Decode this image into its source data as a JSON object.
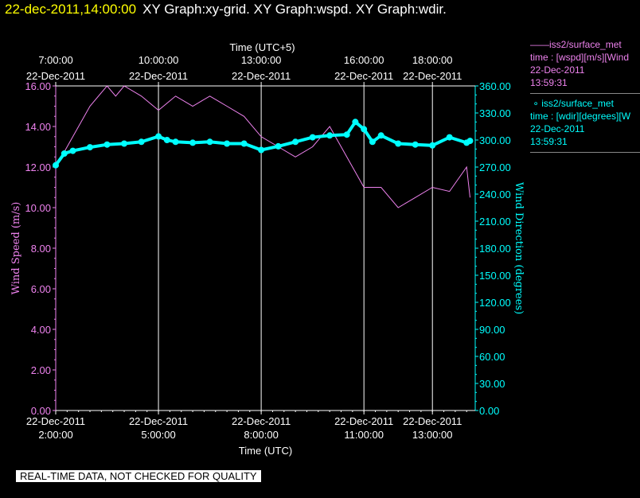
{
  "header": {
    "timestamp": "22-dec-2011,14:00:00",
    "titles": "XY Graph:xy-grid.  XY Graph:wspd.  XY Graph:wdir."
  },
  "legend": [
    {
      "symbol": "——",
      "line1": "iss2/surface_met",
      "line2": "time : [wspd][m/s][Wind",
      "line3": "22-Dec-2011",
      "line4": "13:59:31",
      "color": "#ee82ee"
    },
    {
      "symbol": "∘",
      "line1": "iss2/surface_met",
      "line2": "time : [wdir][degrees][W",
      "line3": "22-Dec-2011",
      "line4": "13:59:31",
      "color": "#00ffff"
    }
  ],
  "note": "REAL-TIME DATA, NOT CHECKED FOR QUALITY",
  "chart_data": {
    "type": "line",
    "xlabel_bottom": "Time (UTC)",
    "xlabel_top": "Time (UTC+5)",
    "ylabel_left": "Wind  Speed  (m/s)",
    "ylabel_right": "Wind  Direction  (degrees)",
    "x_range_utc_hours": [
      2.0,
      14.25
    ],
    "ylim_left": [
      0,
      16
    ],
    "ylim_right": [
      0,
      360
    ],
    "grid": "vertical at labeled time ticks",
    "bottom_ticks": [
      {
        "t": 2,
        "date": "22-Dec-2011",
        "time": "2:00:00"
      },
      {
        "t": 5,
        "date": "22-Dec-2011",
        "time": "5:00:00"
      },
      {
        "t": 8,
        "date": "22-Dec-2011",
        "time": "8:00:00"
      },
      {
        "t": 11,
        "date": "22-Dec-2011",
        "time": "11:00:00"
      },
      {
        "t": 13,
        "date": "22-Dec-2011",
        "time": "13:00:00"
      }
    ],
    "top_ticks": [
      {
        "t": 2,
        "time": "7:00:00",
        "date": "22-Dec-2011"
      },
      {
        "t": 5,
        "time": "10:00:00",
        "date": "22-Dec-2011"
      },
      {
        "t": 8,
        "time": "13:00:00",
        "date": "22-Dec-2011"
      },
      {
        "t": 11,
        "time": "16:00:00",
        "date": "22-Dec-2011"
      },
      {
        "t": 13,
        "time": "18:00:00",
        "date": "22-Dec-2011"
      }
    ],
    "left_ticks": [
      "0.00",
      "2.00",
      "4.00",
      "6.00",
      "8.00",
      "10.00",
      "12.00",
      "14.00",
      "16.00"
    ],
    "right_ticks": [
      "0.00",
      "30.00",
      "60.00",
      "90.00",
      "120.00",
      "150.00",
      "180.00",
      "210.00",
      "240.00",
      "270.00",
      "300.00",
      "330.00",
      "360.00"
    ],
    "colors": {
      "wspd": "#ee82ee",
      "wdir": "#00ffff",
      "axis": "#ee82ee",
      "right_axis": "#00ffff",
      "grid": "#ffffff"
    },
    "series": [
      {
        "name": "iss2/surface_met time : [wspd][m/s][Wind",
        "axis": "left",
        "x": [
          2.0,
          2.5,
          3.0,
          3.5,
          3.75,
          4.0,
          4.5,
          5.0,
          5.5,
          6.0,
          6.5,
          7.0,
          7.5,
          8.0,
          8.5,
          9.0,
          9.5,
          10.0,
          10.5,
          11.0,
          11.5,
          12.0,
          12.5,
          13.0,
          13.5,
          14.0,
          14.1
        ],
        "y": [
          12.0,
          13.5,
          15.0,
          16.0,
          15.5,
          16.0,
          15.5,
          14.8,
          15.5,
          15.0,
          15.5,
          15.0,
          14.5,
          13.5,
          13.0,
          12.5,
          13.0,
          14.0,
          12.5,
          11.0,
          11.0,
          10.0,
          10.5,
          11.0,
          10.8,
          12.0,
          10.5
        ]
      },
      {
        "name": "iss2/surface_met time : [wdir][degrees][W",
        "axis": "right",
        "x": [
          2.0,
          2.25,
          2.5,
          3.0,
          3.5,
          4.0,
          4.5,
          5.0,
          5.25,
          5.5,
          6.0,
          6.5,
          7.0,
          7.5,
          8.0,
          8.5,
          9.0,
          9.5,
          10.0,
          10.5,
          10.75,
          11.0,
          11.25,
          11.5,
          12.0,
          12.5,
          13.0,
          13.5,
          14.0,
          14.1
        ],
        "y": [
          272,
          285,
          288,
          292,
          295,
          296,
          298,
          304,
          300,
          298,
          297,
          298,
          296,
          296,
          289,
          293,
          298,
          303,
          305,
          306,
          320,
          312,
          298,
          305,
          296,
          295,
          294,
          303,
          297,
          299
        ]
      }
    ]
  }
}
